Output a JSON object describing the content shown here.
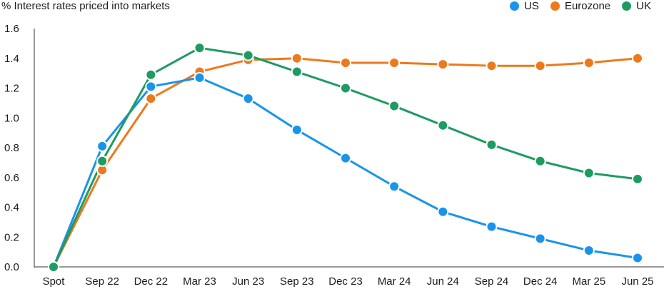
{
  "chart_data": {
    "type": "line",
    "title": "% Interest rates priced into markets",
    "categories": [
      "Spot",
      "Sep 22",
      "Dec 22",
      "Mar 23",
      "Jun 23",
      "Sep 23",
      "Dec 23",
      "Mar 24",
      "Jun 24",
      "Sep 24",
      "Dec 24",
      "Mar 25",
      "Jun 25"
    ],
    "ylim": [
      0,
      1.6
    ],
    "yticks": [
      "0.0",
      "0.2",
      "0.4",
      "0.6",
      "0.8",
      "1.0",
      "1.2",
      "1.4",
      "1.6"
    ],
    "grid": false,
    "legend_position": "top-right",
    "series": [
      {
        "name": "US",
        "color": "#1a94ea",
        "values": [
          0.0,
          0.81,
          1.21,
          1.27,
          1.13,
          0.92,
          0.73,
          0.54,
          0.37,
          0.27,
          0.19,
          0.11,
          0.06
        ]
      },
      {
        "name": "Eurozone",
        "color": "#ec7a1c",
        "values": [
          0.0,
          0.65,
          1.13,
          1.31,
          1.39,
          1.4,
          1.37,
          1.37,
          1.36,
          1.35,
          1.35,
          1.37,
          1.4
        ]
      },
      {
        "name": "UK",
        "color": "#1e9b61",
        "values": [
          0.0,
          0.71,
          1.29,
          1.47,
          1.42,
          1.31,
          1.2,
          1.08,
          0.95,
          0.82,
          0.71,
          0.63,
          0.59
        ]
      }
    ]
  }
}
